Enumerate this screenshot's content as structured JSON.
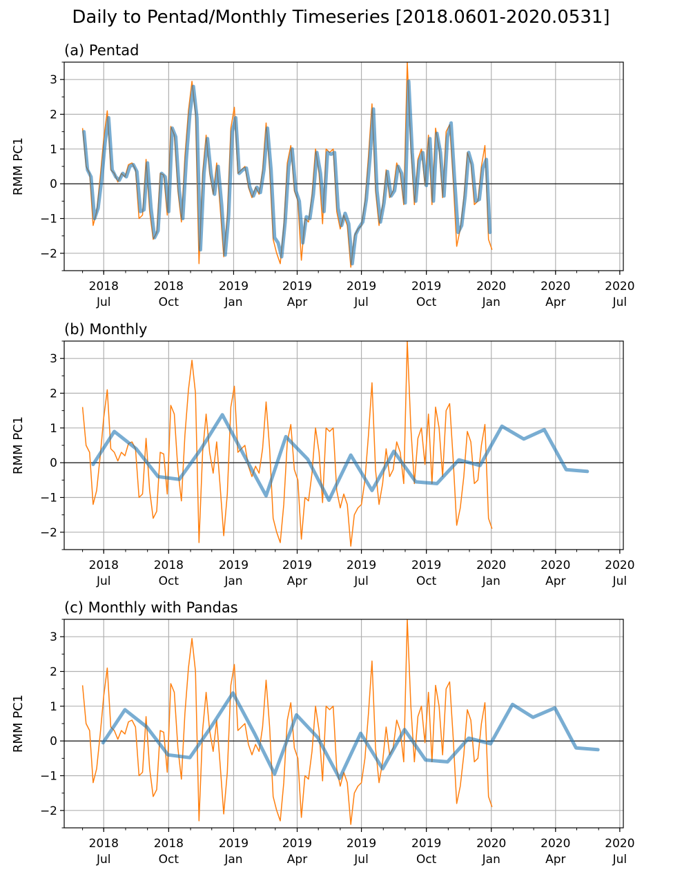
{
  "figure": {
    "suptitle": "Daily to Pentad/Monthly Timeseries [2018.0601-2020.0531]",
    "colors": {
      "daily": "#ff7f0e",
      "aggregate": "#1f77b4",
      "grid": "#b0b0b0",
      "zero_line": "#000000"
    }
  },
  "chart_data": [
    {
      "type": "line",
      "title": "(a) Pentad",
      "ylabel": "RMM PC1",
      "ylim": [
        -2.5,
        3.5
      ],
      "yticks": [
        -2,
        -1,
        0,
        1,
        2,
        3
      ],
      "ytick_labels": [
        "−2",
        "−1",
        "0",
        "1",
        "2",
        "3"
      ],
      "xlim": [
        "2018-05-06",
        "2020-07-06"
      ],
      "xticks": [
        "2018-07-01",
        "2018-10-01",
        "2019-01-01",
        "2019-04-01",
        "2019-07-01",
        "2019-10-01",
        "2020-01-01",
        "2020-04-01",
        "2020-07-01"
      ],
      "xtick_labels": [
        [
          "2018",
          "Jul"
        ],
        [
          "2018",
          "Oct"
        ],
        [
          "2019",
          "Jan"
        ],
        [
          "2019",
          "Apr"
        ],
        [
          "2019",
          "Jul"
        ],
        [
          "2019",
          "Oct"
        ],
        [
          "2020",
          "Jan"
        ],
        [
          "2020",
          "Apr"
        ],
        [
          "2020",
          "Jul"
        ]
      ],
      "grid": true,
      "zero_line": true,
      "series": [
        {
          "role": "daily",
          "start": "2018-06-01",
          "step_days": 5,
          "values": [
            1.6,
            0.5,
            0.3,
            -1.2,
            -0.8,
            0.2,
            1.3,
            2.1,
            0.4,
            0.3,
            0.05,
            0.3,
            0.2,
            0.55,
            0.6,
            0.4,
            -1.0,
            -0.9,
            0.7,
            -0.8,
            -1.6,
            -1.4,
            0.3,
            0.25,
            -0.9,
            1.65,
            1.4,
            -0.2,
            -1.1,
            0.8,
            2.1,
            2.95,
            2.0,
            -2.3,
            0.3,
            1.4,
            0.3,
            -0.3,
            0.6,
            -0.7,
            -2.1,
            -0.9,
            1.6,
            2.2,
            0.3,
            0.4,
            0.5,
            -0.1,
            -0.4,
            -0.1,
            -0.3,
            0.4,
            1.75,
            0.4,
            -1.6,
            -2.0,
            -2.3,
            -1.2,
            0.6,
            1.1,
            -0.2,
            -0.5,
            -2.2,
            -1.0,
            -1.1,
            -0.3,
            1.0,
            0.3,
            -1.15,
            1.0,
            0.9,
            1.0,
            -0.8,
            -1.3,
            -0.9,
            -1.2,
            -2.4,
            -1.5,
            -1.3,
            -1.2,
            -0.5,
            0.8,
            2.3,
            -0.2,
            -1.2,
            -0.6,
            0.4,
            -0.4,
            -0.2,
            0.6,
            0.3,
            -0.6,
            3.5,
            1.0,
            -0.6,
            0.7,
            1.0,
            -0.05,
            1.4,
            -0.6,
            1.6,
            1.0,
            -0.4,
            1.5,
            1.7,
            0.1,
            -1.8,
            -1.3,
            -0.4,
            0.9,
            0.6,
            -0.6,
            -0.5,
            0.5,
            1.1,
            -1.6,
            -1.9
          ]
        },
        {
          "role": "aggregate",
          "start": "2018-06-03",
          "step_days": 5,
          "values": [
            1.5,
            0.4,
            0.2,
            -1.0,
            -0.7,
            0.1,
            1.2,
            1.9,
            0.4,
            0.2,
            0.1,
            0.3,
            0.2,
            0.5,
            0.55,
            0.35,
            -0.8,
            -0.75,
            0.6,
            -0.7,
            -1.55,
            -1.35,
            0.3,
            0.2,
            -0.8,
            1.6,
            1.35,
            -0.2,
            -1.0,
            0.7,
            2.0,
            2.8,
            1.9,
            -1.9,
            0.3,
            1.3,
            0.3,
            -0.3,
            0.5,
            -0.6,
            -2.05,
            -0.9,
            1.5,
            1.9,
            0.3,
            0.4,
            0.45,
            -0.1,
            -0.35,
            -0.1,
            -0.25,
            0.4,
            1.6,
            0.4,
            -1.55,
            -1.7,
            -2.1,
            -1.1,
            0.5,
            1.0,
            -0.2,
            -0.5,
            -1.7,
            -0.95,
            -1.0,
            -0.3,
            0.9,
            0.3,
            -0.8,
            0.9,
            0.85,
            0.9,
            -0.7,
            -1.2,
            -0.85,
            -1.15,
            -2.3,
            -1.45,
            -1.25,
            -1.1,
            -0.45,
            0.7,
            2.15,
            -0.2,
            -1.1,
            -0.55,
            0.35,
            -0.35,
            -0.2,
            0.5,
            0.3,
            -0.55,
            2.95,
            0.9,
            -0.5,
            0.65,
            0.9,
            -0.05,
            1.3,
            -0.5,
            1.45,
            0.9,
            -0.35,
            1.35,
            1.75,
            0.1,
            -1.4,
            -1.2,
            -0.35,
            0.9,
            0.55,
            -0.5,
            -0.45,
            0.45,
            0.7,
            -1.4
          ]
        }
      ]
    },
    {
      "type": "line",
      "title": "(b) Monthly",
      "ylabel": "RMM PC1",
      "ylim": [
        -2.5,
        3.5
      ],
      "yticks": [
        -2,
        -1,
        0,
        1,
        2,
        3
      ],
      "ytick_labels": [
        "−2",
        "−1",
        "0",
        "1",
        "2",
        "3"
      ],
      "xlim": [
        "2018-05-06",
        "2020-07-06"
      ],
      "xticks": [
        "2018-07-01",
        "2018-10-01",
        "2019-01-01",
        "2019-04-01",
        "2019-07-01",
        "2019-10-01",
        "2020-01-01",
        "2020-04-01",
        "2020-07-01"
      ],
      "xtick_labels": [
        [
          "2018",
          "Jul"
        ],
        [
          "2018",
          "Oct"
        ],
        [
          "2019",
          "Jan"
        ],
        [
          "2019",
          "Apr"
        ],
        [
          "2019",
          "Jul"
        ],
        [
          "2019",
          "Oct"
        ],
        [
          "2020",
          "Jan"
        ],
        [
          "2020",
          "Apr"
        ],
        [
          "2020",
          "Jul"
        ]
      ],
      "grid": true,
      "zero_line": true,
      "series": [
        {
          "role": "daily",
          "start": "2018-06-01",
          "step_days": 5,
          "values": [
            1.6,
            0.5,
            0.3,
            -1.2,
            -0.8,
            0.2,
            1.3,
            2.1,
            0.4,
            0.3,
            0.05,
            0.3,
            0.2,
            0.55,
            0.6,
            0.4,
            -1.0,
            -0.9,
            0.7,
            -0.8,
            -1.6,
            -1.4,
            0.3,
            0.25,
            -0.9,
            1.65,
            1.4,
            -0.2,
            -1.1,
            0.8,
            2.1,
            2.95,
            2.0,
            -2.3,
            0.3,
            1.4,
            0.3,
            -0.3,
            0.6,
            -0.7,
            -2.1,
            -0.9,
            1.6,
            2.2,
            0.3,
            0.4,
            0.5,
            -0.1,
            -0.4,
            -0.1,
            -0.3,
            0.4,
            1.75,
            0.4,
            -1.6,
            -2.0,
            -2.3,
            -1.2,
            0.6,
            1.1,
            -0.2,
            -0.5,
            -2.2,
            -1.0,
            -1.1,
            -0.3,
            1.0,
            0.3,
            -1.15,
            1.0,
            0.9,
            1.0,
            -0.8,
            -1.3,
            -0.9,
            -1.2,
            -2.4,
            -1.5,
            -1.3,
            -1.2,
            -0.5,
            0.8,
            2.3,
            -0.2,
            -1.2,
            -0.6,
            0.4,
            -0.4,
            -0.2,
            0.6,
            0.3,
            -0.6,
            3.5,
            1.0,
            -0.6,
            0.7,
            1.0,
            -0.05,
            1.4,
            -0.6,
            1.6,
            1.0,
            -0.4,
            1.5,
            1.7,
            0.1,
            -1.8,
            -1.3,
            -0.4,
            0.9,
            0.6,
            -0.6,
            -0.5,
            0.5,
            1.1,
            -1.6,
            -1.9
          ]
        },
        {
          "role": "aggregate",
          "x": [
            "2018-06-16",
            "2018-07-16",
            "2018-08-16",
            "2018-09-16",
            "2018-10-16",
            "2018-11-16",
            "2018-12-16",
            "2019-01-16",
            "2019-02-16",
            "2019-03-16",
            "2019-04-16",
            "2019-05-16",
            "2019-06-16",
            "2019-07-16",
            "2019-08-16",
            "2019-09-16",
            "2019-10-16",
            "2019-11-16",
            "2019-12-16",
            "2020-01-16",
            "2020-02-16",
            "2020-03-16",
            "2020-04-16",
            "2020-05-16"
          ],
          "values": [
            -0.05,
            0.9,
            0.4,
            -0.4,
            -0.48,
            0.4,
            1.38,
            0.2,
            -0.95,
            0.75,
            0.1,
            -1.08,
            0.22,
            -0.8,
            0.33,
            -0.55,
            -0.6,
            0.08,
            -0.08,
            1.05,
            0.68,
            0.95,
            -0.2,
            -0.25
          ]
        }
      ]
    },
    {
      "type": "line",
      "title": "(c) Monthly with Pandas",
      "ylabel": "RMM PC1",
      "ylim": [
        -2.5,
        3.5
      ],
      "yticks": [
        -2,
        -1,
        0,
        1,
        2,
        3
      ],
      "ytick_labels": [
        "−2",
        "−1",
        "0",
        "1",
        "2",
        "3"
      ],
      "xlim": [
        "2018-05-06",
        "2020-07-06"
      ],
      "xticks": [
        "2018-07-01",
        "2018-10-01",
        "2019-01-01",
        "2019-04-01",
        "2019-07-01",
        "2019-10-01",
        "2020-01-01",
        "2020-04-01",
        "2020-07-01"
      ],
      "xtick_labels": [
        [
          "2018",
          "Jul"
        ],
        [
          "2018",
          "Oct"
        ],
        [
          "2019",
          "Jan"
        ],
        [
          "2019",
          "Apr"
        ],
        [
          "2019",
          "Jul"
        ],
        [
          "2019",
          "Oct"
        ],
        [
          "2020",
          "Jan"
        ],
        [
          "2020",
          "Apr"
        ],
        [
          "2020",
          "Jul"
        ]
      ],
      "grid": true,
      "zero_line": true,
      "series": [
        {
          "role": "daily",
          "start": "2018-06-01",
          "step_days": 5,
          "values": [
            1.6,
            0.5,
            0.3,
            -1.2,
            -0.8,
            0.2,
            1.3,
            2.1,
            0.4,
            0.3,
            0.05,
            0.3,
            0.2,
            0.55,
            0.6,
            0.4,
            -1.0,
            -0.9,
            0.7,
            -0.8,
            -1.6,
            -1.4,
            0.3,
            0.25,
            -0.9,
            1.65,
            1.4,
            -0.2,
            -1.1,
            0.8,
            2.1,
            2.95,
            2.0,
            -2.3,
            0.3,
            1.4,
            0.3,
            -0.3,
            0.6,
            -0.7,
            -2.1,
            -0.9,
            1.6,
            2.2,
            0.3,
            0.4,
            0.5,
            -0.1,
            -0.4,
            -0.1,
            -0.3,
            0.4,
            1.75,
            0.4,
            -1.6,
            -2.0,
            -2.3,
            -1.2,
            0.6,
            1.1,
            -0.2,
            -0.5,
            -2.2,
            -1.0,
            -1.1,
            -0.3,
            1.0,
            0.3,
            -1.15,
            1.0,
            0.9,
            1.0,
            -0.8,
            -1.3,
            -0.9,
            -1.2,
            -2.4,
            -1.5,
            -1.3,
            -1.2,
            -0.5,
            0.8,
            2.3,
            -0.2,
            -1.2,
            -0.6,
            0.4,
            -0.4,
            -0.2,
            0.6,
            0.3,
            -0.6,
            3.5,
            1.0,
            -0.6,
            0.7,
            1.0,
            -0.05,
            1.4,
            -0.6,
            1.6,
            1.0,
            -0.4,
            1.5,
            1.7,
            0.1,
            -1.8,
            -1.3,
            -0.4,
            0.9,
            0.6,
            -0.6,
            -0.5,
            0.5,
            1.1,
            -1.6,
            -1.9
          ]
        },
        {
          "role": "aggregate",
          "x": [
            "2018-06-30",
            "2018-07-31",
            "2018-08-31",
            "2018-09-30",
            "2018-10-31",
            "2018-11-30",
            "2018-12-31",
            "2019-01-31",
            "2019-02-28",
            "2019-03-31",
            "2019-04-30",
            "2019-05-31",
            "2019-06-30",
            "2019-07-31",
            "2019-08-31",
            "2019-09-30",
            "2019-10-31",
            "2019-11-30",
            "2019-12-31",
            "2020-01-31",
            "2020-02-29",
            "2020-03-31",
            "2020-04-30",
            "2020-05-31"
          ],
          "values": [
            -0.05,
            0.9,
            0.4,
            -0.4,
            -0.48,
            0.4,
            1.38,
            0.2,
            -0.95,
            0.75,
            0.1,
            -1.08,
            0.22,
            -0.8,
            0.33,
            -0.55,
            -0.6,
            0.08,
            -0.08,
            1.05,
            0.68,
            0.95,
            -0.2,
            -0.25
          ]
        }
      ]
    }
  ]
}
